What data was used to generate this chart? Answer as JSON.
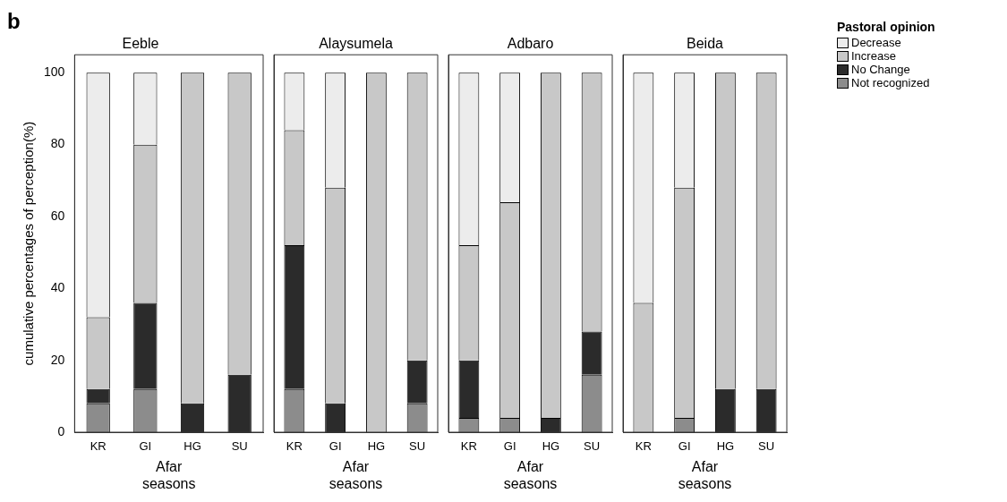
{
  "chart_data": [
    {
      "type": "bar",
      "title": "Eeble",
      "xlabel": "Afar seasons",
      "ylabel": "cumulative percentages of perception(%)",
      "annotations": [
        "b"
      ],
      "categories": [
        "KR",
        "GI",
        "HG",
        "SU"
      ],
      "stacked": true,
      "ylim": [
        0,
        105
      ],
      "yticks": [
        0,
        20,
        40,
        60,
        80,
        100
      ],
      "grid": false,
      "legend": "top right",
      "legend_title": "Pastoral opinion",
      "series": [
        {
          "name": "Not recognized",
          "color": "#8c8c8c",
          "values": [
            8,
            12,
            0,
            0
          ]
        },
        {
          "name": "No Change",
          "color": "#2b2b2b",
          "values": [
            4,
            24,
            8,
            16
          ]
        },
        {
          "name": "Increase",
          "color": "#c8c8c8",
          "values": [
            20,
            44,
            92,
            84
          ]
        },
        {
          "name": "Decrease",
          "color": "#ececec",
          "values": [
            68,
            20,
            0,
            0
          ]
        }
      ]
    },
    {
      "type": "bar",
      "title": "Alaysumela",
      "xlabel": "Afar seasons",
      "categories": [
        "KR",
        "GI",
        "HG",
        "SU"
      ],
      "stacked": true,
      "ylim": [
        0,
        105
      ],
      "yticks": [
        0,
        20,
        40,
        60,
        80,
        100
      ],
      "tick_labels": "x",
      "grid": false,
      "series": [
        {
          "color": "#8c8c8c",
          "values": [
            12,
            0,
            0,
            8
          ]
        },
        {
          "color": "#2b2b2b",
          "values": [
            40,
            8,
            0,
            12
          ]
        },
        {
          "color": "#c8c8c8",
          "values": [
            32,
            60,
            100,
            80
          ]
        },
        {
          "color": "#ececec",
          "values": [
            16,
            32,
            0,
            0
          ]
        }
      ]
    },
    {
      "type": "bar",
      "title": "Adbaro",
      "xlabel": "Afar seasons",
      "categories": [
        "KR",
        "GI",
        "HG",
        "SU"
      ],
      "stacked": true,
      "ylim": [
        0,
        105
      ],
      "yticks": [
        0,
        20,
        40,
        60,
        80,
        100
      ],
      "tick_labels": "x",
      "grid": false,
      "series": [
        {
          "color": "#8c8c8c",
          "values": [
            4,
            4,
            0,
            16
          ]
        },
        {
          "color": "#2b2b2b",
          "values": [
            16,
            0,
            4,
            12
          ]
        },
        {
          "color": "#c8c8c8",
          "values": [
            32,
            60,
            96,
            72
          ]
        },
        {
          "color": "#ececec",
          "values": [
            48,
            36,
            0,
            0
          ]
        }
      ]
    },
    {
      "type": "bar",
      "title": "Beida",
      "xlabel": "Afar seasons",
      "categories": [
        "KR",
        "GI",
        "HG",
        "SU"
      ],
      "stacked": true,
      "ylim": [
        0,
        105
      ],
      "yticks": [
        0,
        20,
        40,
        60,
        80,
        100
      ],
      "tick_labels": "x",
      "grid": false,
      "series": [
        {
          "color": "#8c8c8c",
          "values": [
            0,
            4,
            0,
            0
          ]
        },
        {
          "color": "#2b2b2b",
          "values": [
            0,
            0,
            12,
            12
          ]
        },
        {
          "color": "#c8c8c8",
          "values": [
            36,
            64,
            88,
            88
          ]
        },
        {
          "color": "#ececec",
          "values": [
            64,
            32,
            0,
            0
          ]
        }
      ]
    }
  ]
}
